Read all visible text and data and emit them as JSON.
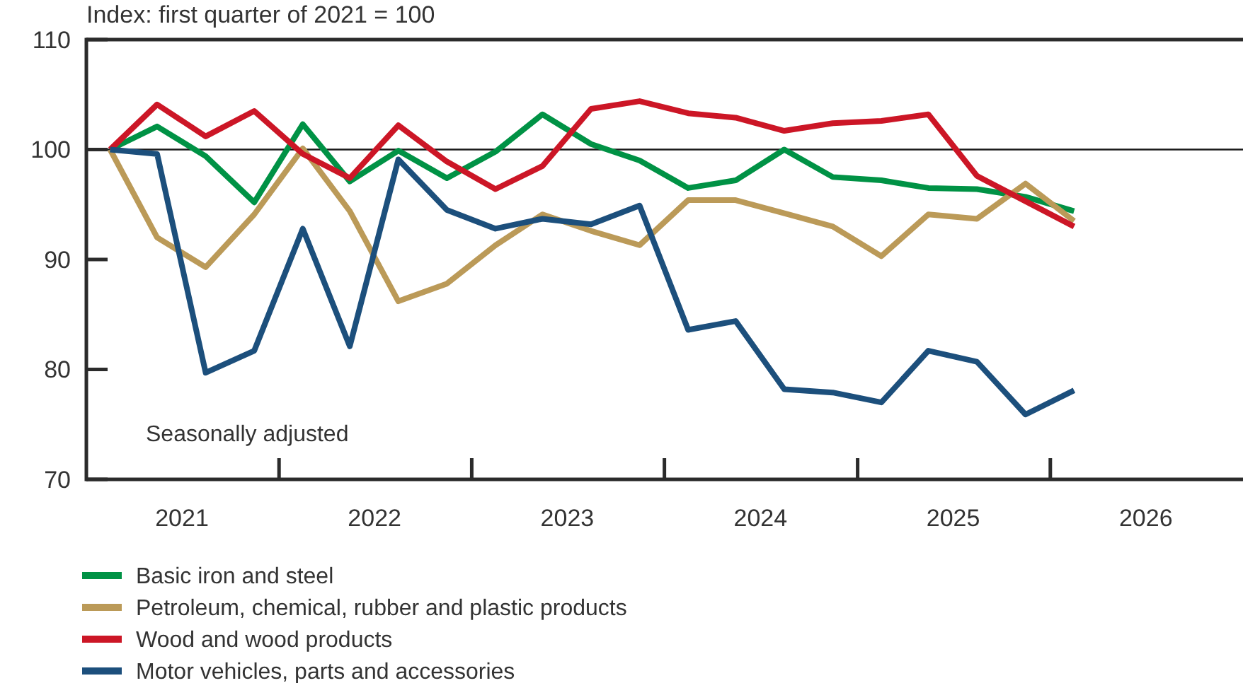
{
  "chart_data": {
    "type": "line",
    "ylabel": "Index: first quarter of 2021 = 100",
    "x": [
      "2021-02-15",
      "2021-05-15",
      "2021-08-15",
      "2021-11-15",
      "2022-02-15",
      "2022-05-15",
      "2022-08-15",
      "2022-11-15",
      "2023-02-15",
      "2023-05-15",
      "2023-08-15",
      "2023-11-15",
      "2024-02-15",
      "2024-05-15",
      "2024-08-15",
      "2024-11-15",
      "2025-02-15",
      "2025-05-15",
      "2025-08-15",
      "2025-11-15",
      "2026-02-15"
    ],
    "xlim": [
      "2021-01-01",
      "2027-01-01"
    ],
    "xticks": [
      {
        "value": "2021-07-01",
        "label": "2021"
      },
      {
        "value": "2022-01-01",
        "label": null
      },
      {
        "value": "2022-07-01",
        "label": "2022"
      },
      {
        "value": "2023-01-01",
        "label": null
      },
      {
        "value": "2023-07-01",
        "label": "2023"
      },
      {
        "value": "2024-01-01",
        "label": null
      },
      {
        "value": "2024-07-01",
        "label": "2024"
      },
      {
        "value": "2025-01-01",
        "label": null
      },
      {
        "value": "2025-07-01",
        "label": "2025"
      },
      {
        "value": "2026-01-01",
        "label": null
      },
      {
        "value": "2026-07-01",
        "label": "2026"
      }
    ],
    "ylim": [
      70,
      110
    ],
    "yticks": [
      70,
      80,
      90,
      100,
      110
    ],
    "series": [
      {
        "name": "Basic iron and steel",
        "color": "#009245",
        "values": [
          100,
          102.1,
          99.4,
          95.2,
          102.3,
          97.1,
          99.9,
          97.4,
          99.8,
          103.2,
          100.5,
          99.0,
          96.5,
          97.2,
          100.0,
          97.5,
          97.2,
          96.5,
          96.4,
          95.7,
          94.4
        ]
      },
      {
        "name": "Petroleum, chemical, rubber and plastic products",
        "color": "#bb9a58",
        "values": [
          100,
          92.0,
          89.3,
          94.1,
          100.1,
          94.4,
          86.2,
          87.8,
          91.3,
          94.1,
          92.6,
          91.3,
          95.4,
          95.4,
          94.2,
          93.0,
          90.3,
          94.1,
          93.7,
          96.9,
          93.5
        ]
      },
      {
        "name": "Wood and wood products",
        "color": "#cc1626",
        "values": [
          100,
          104.1,
          101.2,
          103.5,
          99.6,
          97.4,
          102.2,
          98.9,
          96.4,
          98.5,
          103.7,
          104.4,
          103.3,
          102.9,
          101.7,
          102.4,
          102.6,
          103.2,
          97.6,
          95.3,
          93.0
        ]
      },
      {
        "name": "Motor vehicles, parts and accessories",
        "color": "#1c4f7c",
        "values": [
          100,
          99.6,
          79.7,
          81.7,
          92.8,
          82.1,
          99.1,
          94.5,
          92.8,
          93.7,
          93.2,
          94.9,
          83.6,
          84.4,
          78.2,
          77.9,
          77.0,
          81.7,
          80.7,
          75.9,
          78.1
        ]
      }
    ],
    "ref_lines": [
      {
        "axis": "y",
        "value": 100,
        "color": "#1a1a1a"
      }
    ],
    "annotations": [
      "Seasonally adjusted"
    ],
    "legend": "bottom"
  }
}
